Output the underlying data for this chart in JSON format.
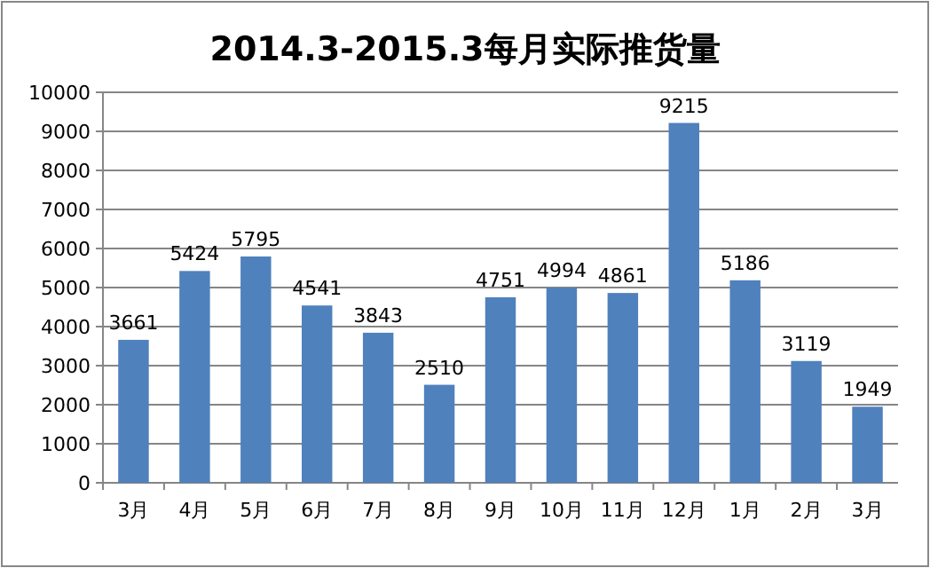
{
  "chart_data": {
    "type": "bar",
    "title": "2014.3-2015.3每月实际推货量",
    "categories": [
      "3月",
      "4月",
      "5月",
      "6月",
      "7月",
      "8月",
      "9月",
      "10月",
      "11月",
      "12月",
      "1月",
      "2月",
      "3月"
    ],
    "values": [
      3661,
      5424,
      5795,
      4541,
      3843,
      2510,
      4751,
      4994,
      4861,
      9215,
      5186,
      3119,
      1949
    ],
    "color": "#4f81bd",
    "ylim": [
      0,
      10000
    ],
    "yticks": [
      0,
      1000,
      2000,
      3000,
      4000,
      5000,
      6000,
      7000,
      8000,
      9000,
      10000
    ],
    "grid": "y",
    "data_labels": true
  }
}
